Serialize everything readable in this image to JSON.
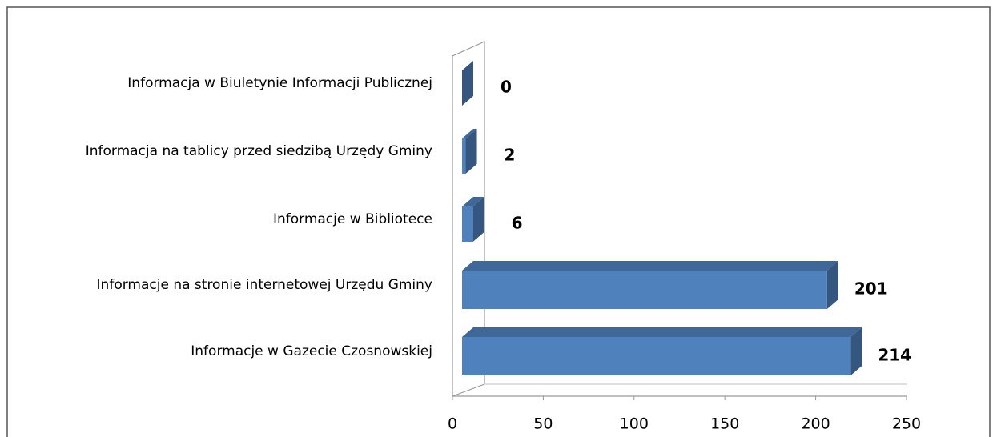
{
  "chart_data": {
    "type": "bar3d_horizontal",
    "categories": [
      "Informacja w Biuletynie Informacji Publicznej",
      "Informacja na tablicy przed siedzibą Urzędy  Gminy",
      "Informacje w Bibliotece",
      "Informacje na stronie internetowej  Urzędu Gminy",
      "Informacje w Gazecie Czosnowskiej"
    ],
    "values": [
      0,
      2,
      6,
      201,
      214
    ],
    "color": "#4f81bd",
    "xlim": [
      0,
      250
    ],
    "xticks": [
      0,
      50,
      100,
      150,
      200,
      250
    ]
  }
}
